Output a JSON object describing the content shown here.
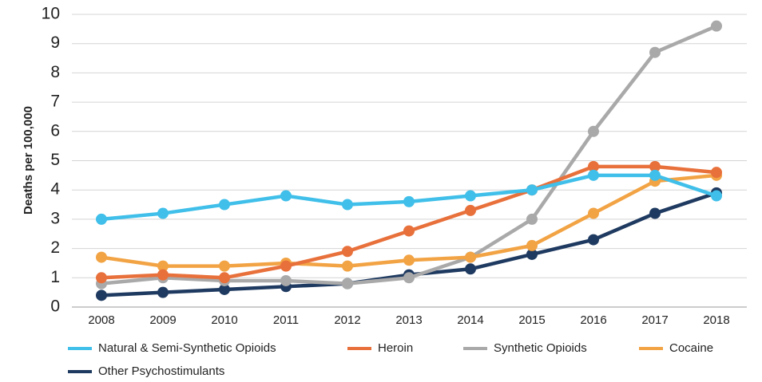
{
  "chart_data": {
    "type": "line",
    "y_label": "Deaths per 100,000",
    "categories": [
      "2008",
      "2009",
      "2010",
      "2011",
      "2012",
      "2013",
      "2014",
      "2015",
      "2016",
      "2017",
      "2018"
    ],
    "series": [
      {
        "name": "Natural & Semi-Synthetic Opioids",
        "color": "#3fbfe9",
        "values": [
          3.0,
          3.2,
          3.5,
          3.8,
          3.5,
          3.6,
          3.8,
          4.0,
          4.5,
          4.5,
          3.8
        ]
      },
      {
        "name": "Heroin",
        "color": "#e8703b",
        "values": [
          1.0,
          1.1,
          1.0,
          1.4,
          1.9,
          2.6,
          3.3,
          4.0,
          4.8,
          4.8,
          4.6
        ]
      },
      {
        "name": "Synthetic Opioids",
        "color": "#a9a9a9",
        "values": [
          0.8,
          1.0,
          0.9,
          0.9,
          0.8,
          1.0,
          1.7,
          3.0,
          6.0,
          8.7,
          9.6
        ]
      },
      {
        "name": "Cocaine",
        "color": "#f2a344",
        "values": [
          1.7,
          1.4,
          1.4,
          1.5,
          1.4,
          1.6,
          1.7,
          2.1,
          3.2,
          4.3,
          4.5
        ]
      },
      {
        "name": "Other Psychostimulants",
        "color": "#1f3a60",
        "values": [
          0.4,
          0.5,
          0.6,
          0.7,
          0.8,
          1.1,
          1.3,
          1.8,
          2.3,
          3.2,
          3.9
        ]
      }
    ],
    "ylim": [
      0,
      10
    ],
    "yticks": [
      0,
      1,
      2,
      3,
      4,
      5,
      6,
      7,
      8,
      9,
      10
    ],
    "grid": true
  }
}
